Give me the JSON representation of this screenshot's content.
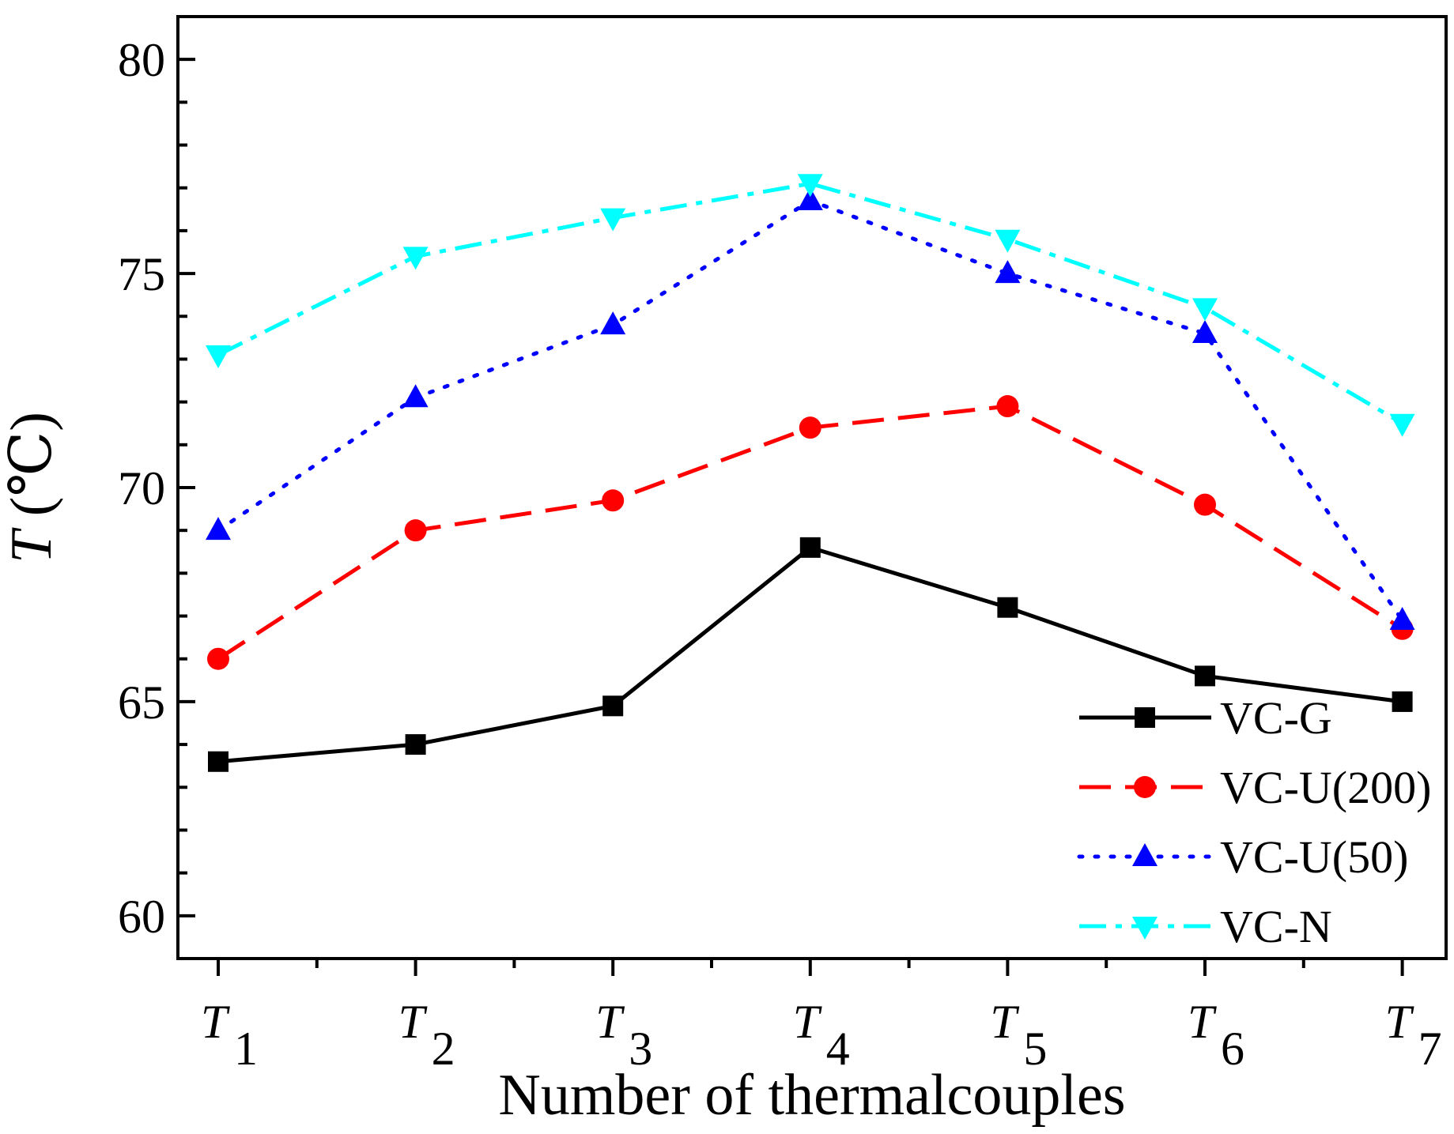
{
  "chart_data": {
    "type": "line",
    "title": "",
    "xlabel": "Number of thermalcouples",
    "ylabel": "T (℃)",
    "ylabel_symbol": "T",
    "ylabel_unit": " (℃)",
    "categories": [
      {
        "main": "T",
        "sub": "1"
      },
      {
        "main": "T",
        "sub": "2"
      },
      {
        "main": "T",
        "sub": "3"
      },
      {
        "main": "T",
        "sub": "4"
      },
      {
        "main": "T",
        "sub": "5"
      },
      {
        "main": "T",
        "sub": "6"
      },
      {
        "main": "T",
        "sub": "7"
      }
    ],
    "ylim": [
      59,
      81
    ],
    "yticks": [
      60,
      65,
      70,
      75,
      80
    ],
    "ytick_labels": [
      "60",
      "65",
      "70",
      "75",
      "80"
    ],
    "grid": false,
    "legend_position": "bottom-right",
    "series": [
      {
        "name": "VC-G",
        "color": "#000000",
        "line_style": "solid",
        "marker": "square",
        "values": [
          63.6,
          64.0,
          64.9,
          68.6,
          67.2,
          65.6,
          65.0
        ]
      },
      {
        "name": "VC-U(200)",
        "color": "#ff0000",
        "line_style": "dashed",
        "marker": "circle",
        "values": [
          66.0,
          69.0,
          69.7,
          71.4,
          71.9,
          69.6,
          66.7
        ]
      },
      {
        "name": "VC-U(50)",
        "color": "#0000ff",
        "line_style": "dotted",
        "marker": "triangle-up",
        "values": [
          69.0,
          72.1,
          73.8,
          76.7,
          75.0,
          73.6,
          66.9
        ]
      },
      {
        "name": "VC-N",
        "color": "#00ffff",
        "line_style": "dashdot",
        "marker": "triangle-down",
        "values": [
          73.1,
          75.4,
          76.3,
          77.1,
          75.8,
          74.2,
          71.5
        ]
      }
    ]
  }
}
